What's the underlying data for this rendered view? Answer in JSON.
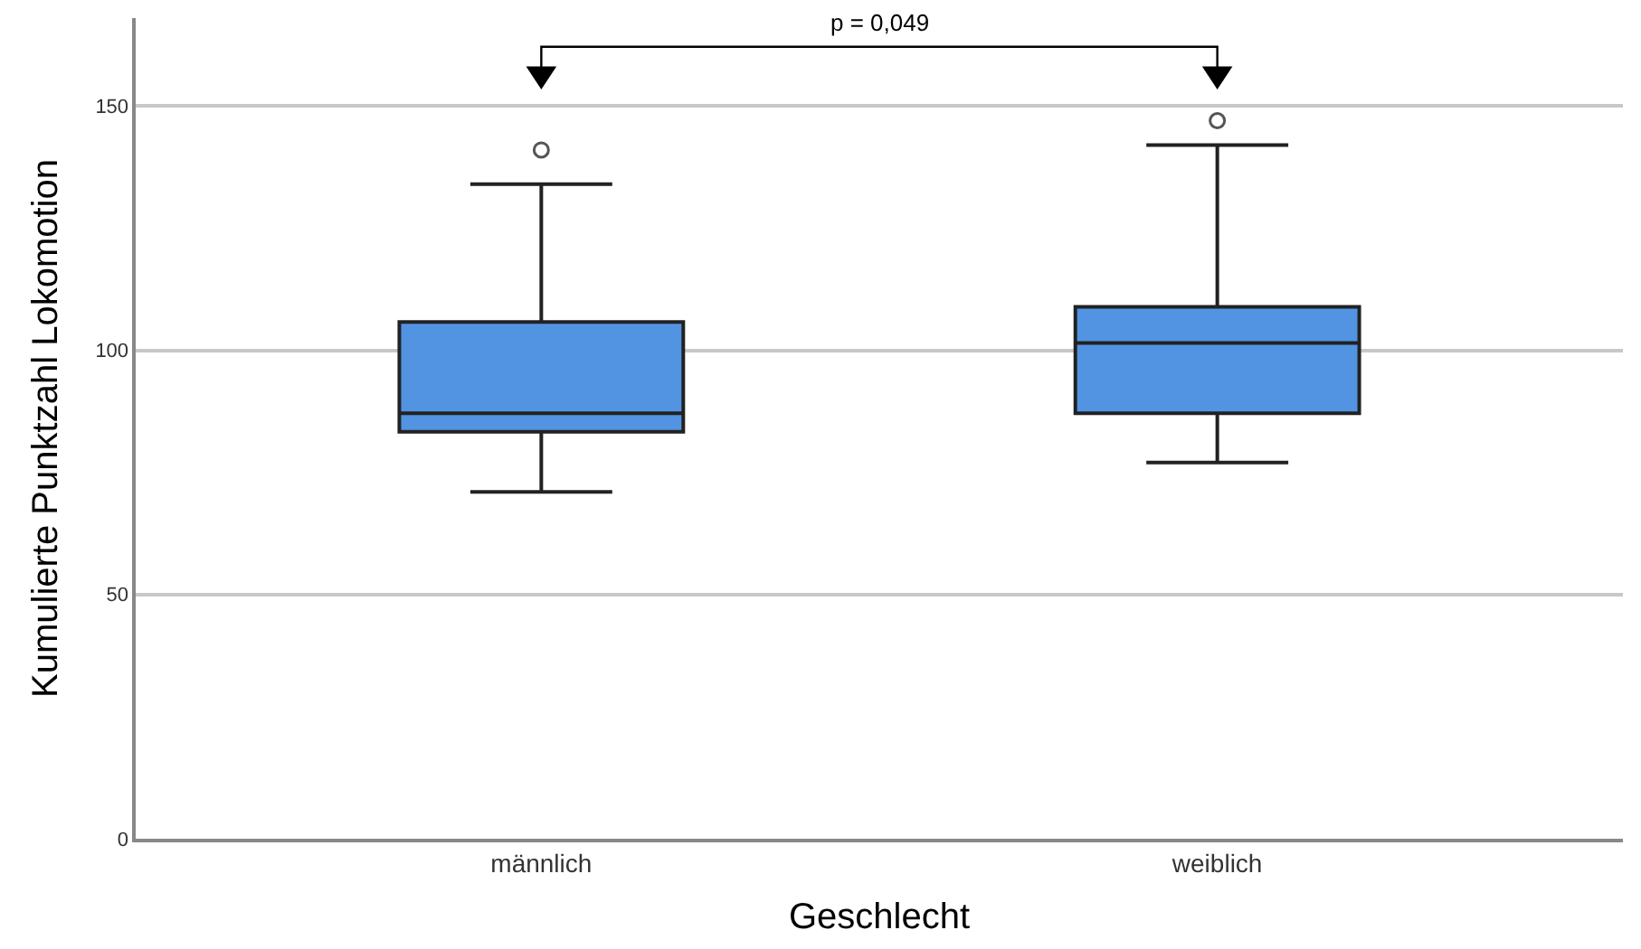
{
  "chart_data": {
    "type": "box",
    "xlabel": "Geschlecht",
    "ylabel": "Kumulierte Punktzahl Lokomotion",
    "categories": [
      "männlich",
      "weiblich"
    ],
    "boxes": [
      {
        "low": 71,
        "q1": 83.3,
        "median": 87.1,
        "q3": 105.8,
        "high": 134,
        "outliers": [
          141
        ]
      },
      {
        "low": 77,
        "q1": 87.1,
        "median": 101.5,
        "q3": 108.9,
        "high": 142,
        "outliers": [
          147
        ]
      }
    ],
    "color": "#5294e2",
    "ylim": [
      0,
      168
    ],
    "yticks": [
      0,
      50,
      100,
      150
    ],
    "grid": "y",
    "annotations": [
      "p = 0,049"
    ]
  }
}
